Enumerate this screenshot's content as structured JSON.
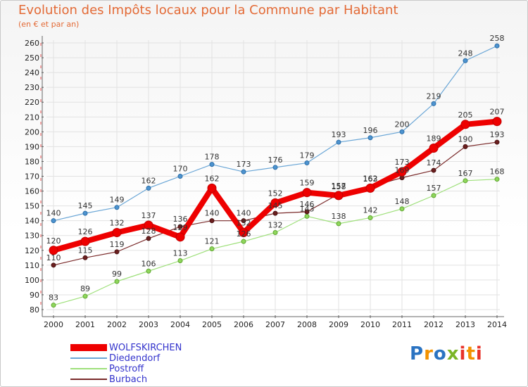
{
  "header": {
    "title": "Evolution des Impôts locaux pour la Commune par Habitant",
    "subtitle": "(en € et par an)"
  },
  "logo": {
    "text": "Proxiti",
    "colors": [
      "#2a73c2",
      "#f39200",
      "#2a73c2",
      "#7bb526",
      "#e8332a",
      "#f39200",
      "#e8332a"
    ]
  },
  "chart_data": {
    "type": "line",
    "title": "Evolution des Impôts locaux pour la Commune par Habitant",
    "subtitle": "(en € et par an)",
    "x": [
      2000,
      2001,
      2002,
      2003,
      2004,
      2005,
      2006,
      2007,
      2008,
      2009,
      2010,
      2011,
      2012,
      2013,
      2014
    ],
    "ylim": [
      80,
      260
    ],
    "yticks": [
      80,
      90,
      100,
      110,
      120,
      130,
      140,
      150,
      160,
      170,
      180,
      190,
      200,
      210,
      220,
      230,
      240,
      250,
      260
    ],
    "grid": true,
    "legend": "bottom-left",
    "series": [
      {
        "name": "WOLFSKIRCHEN",
        "color": "#ee0000",
        "values": [
          120,
          126,
          132,
          137,
          129,
          162,
          132,
          152,
          159,
          157,
          162,
          173,
          189,
          205,
          207
        ]
      },
      {
        "name": "Diedendorf",
        "color": "#6aa6d6",
        "values": [
          140,
          145,
          149,
          162,
          170,
          178,
          173,
          176,
          179,
          193,
          196,
          200,
          219,
          248,
          258
        ]
      },
      {
        "name": "Postroff",
        "color": "#9ee07a",
        "values": [
          83,
          89,
          99,
          106,
          113,
          121,
          126,
          132,
          143,
          138,
          142,
          148,
          157,
          167,
          168
        ]
      },
      {
        "name": "Burbach",
        "color": "#7a2a2a",
        "values": [
          110,
          115,
          119,
          128,
          136,
          140,
          140,
          145,
          146,
          158,
          163,
          169,
          174,
          190,
          193
        ]
      }
    ]
  }
}
